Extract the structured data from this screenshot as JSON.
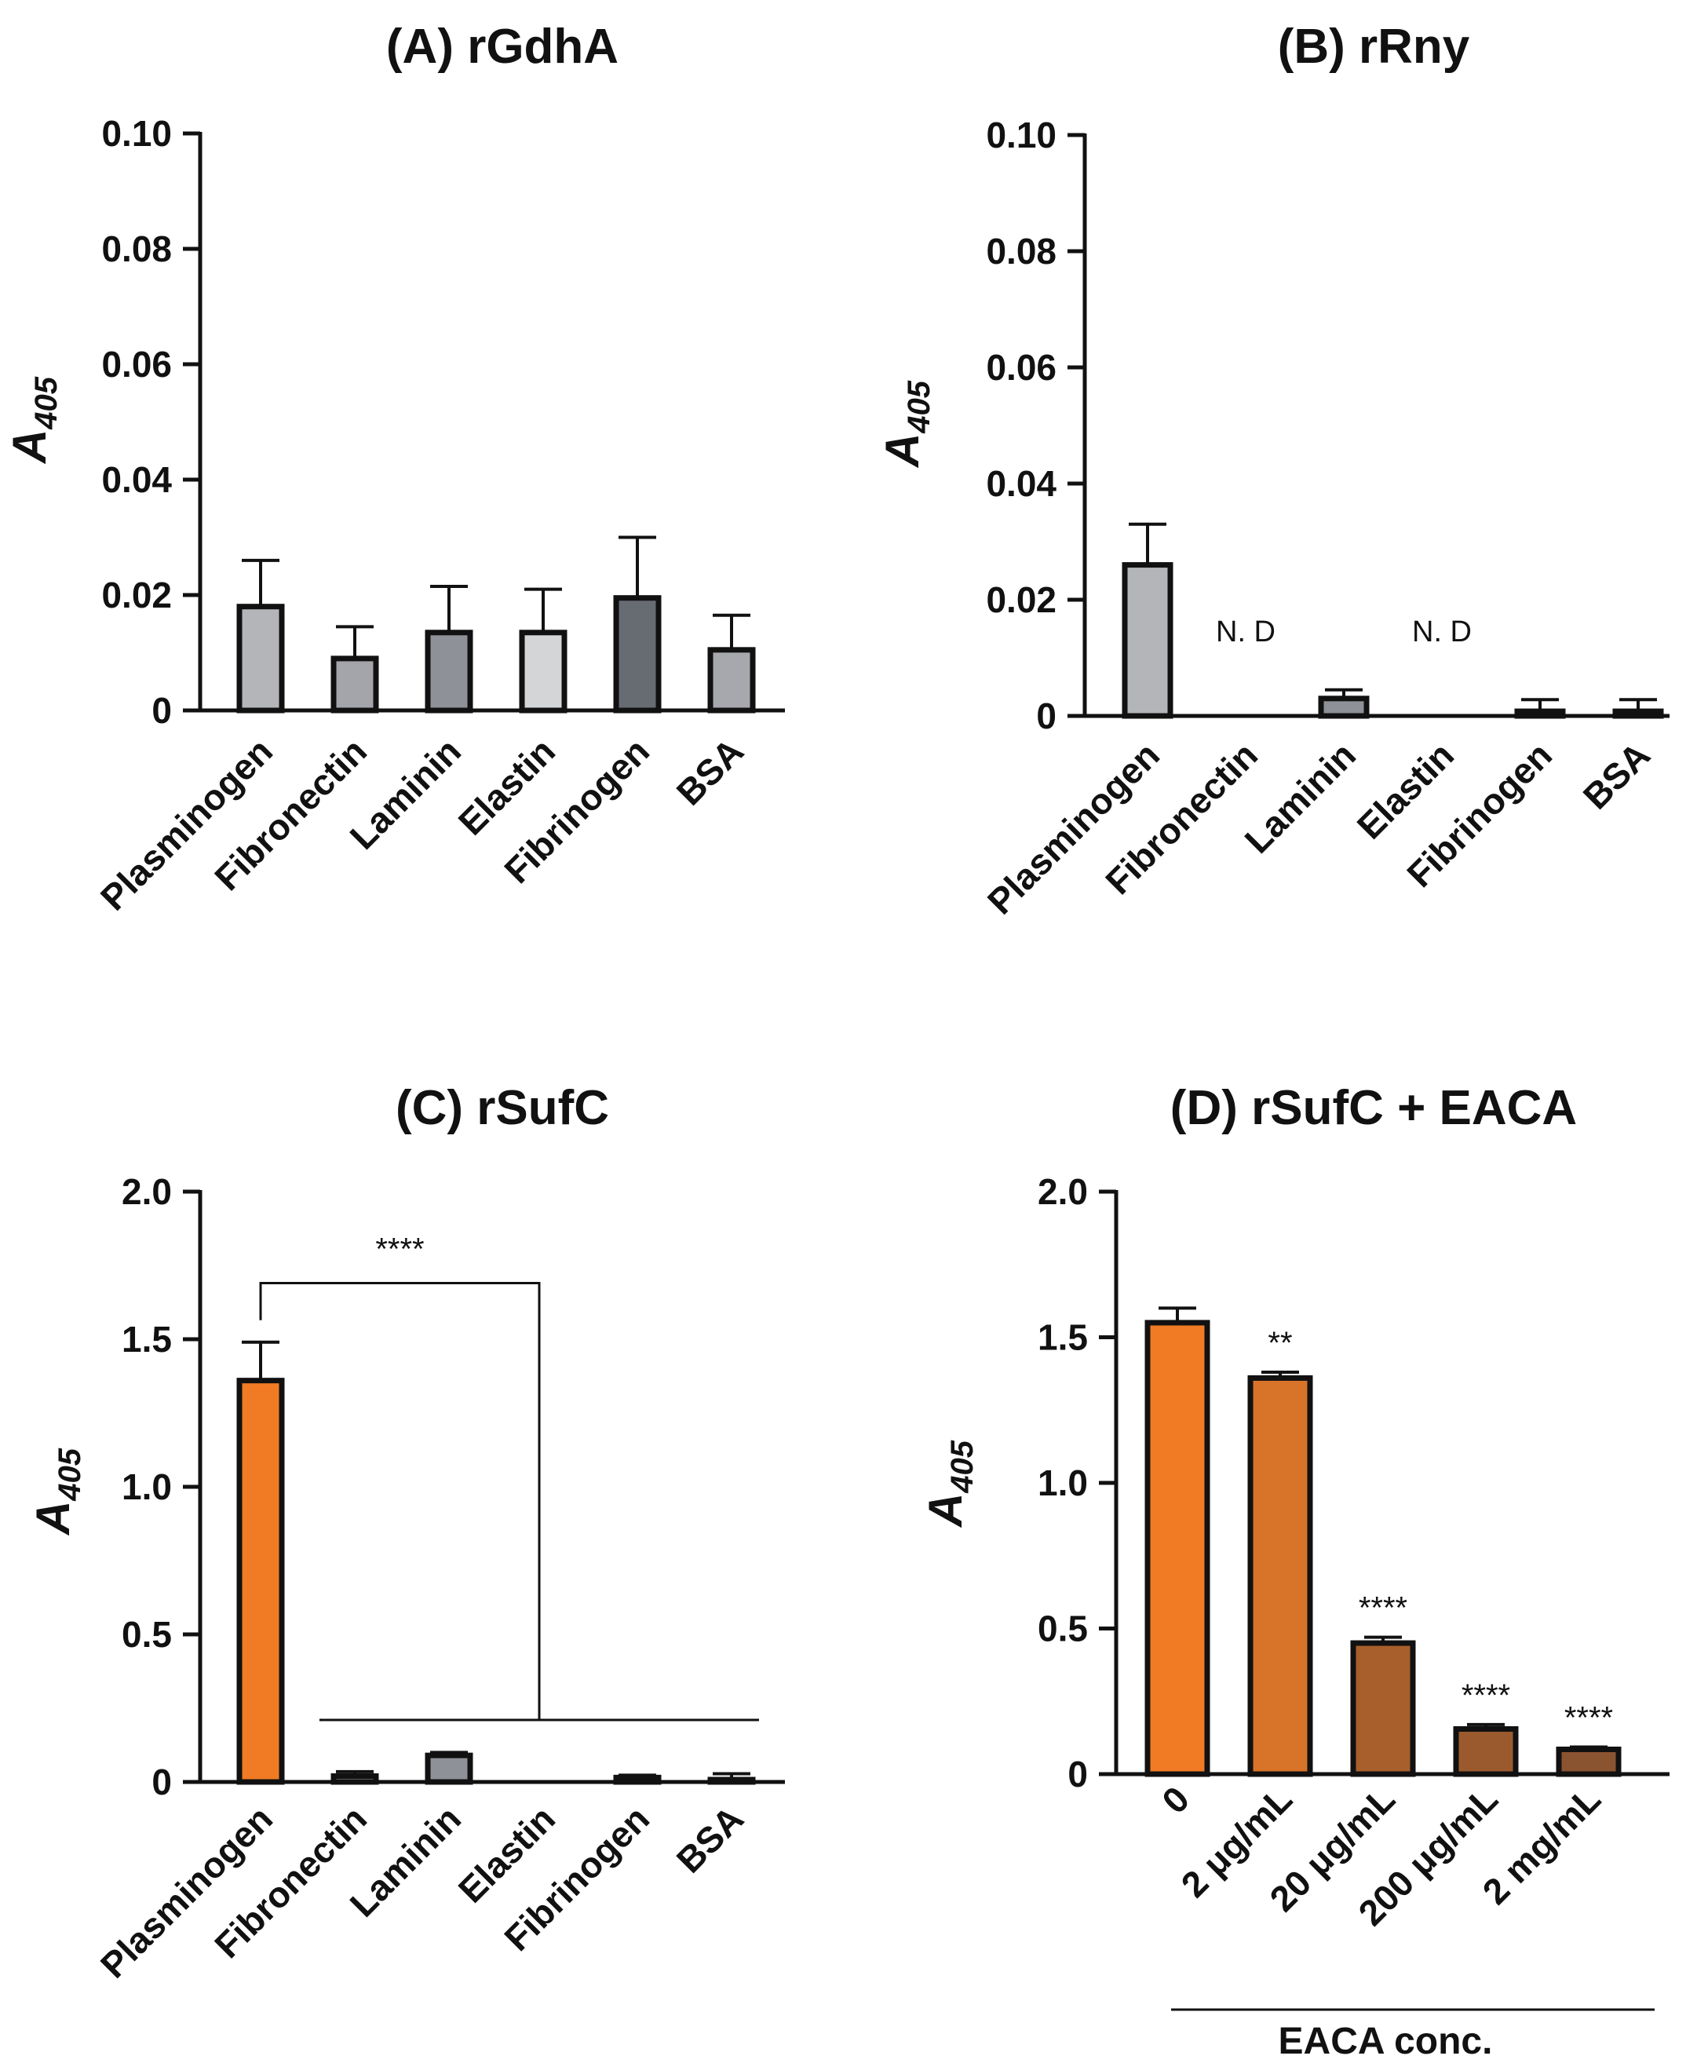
{
  "chart_data": [
    {
      "id": "A",
      "type": "bar",
      "title": "(A) rGdhA",
      "ylabel": "A",
      "ylabel_sub": "405",
      "xlabel": "",
      "ylim": [
        0,
        0.1
      ],
      "yticks": [
        0,
        0.02,
        0.04,
        0.06,
        0.08,
        0.1
      ],
      "ytick_labels": [
        "0",
        "0.02",
        "0.04",
        "0.06",
        "0.08",
        "0.10"
      ],
      "categories": [
        "Plasminogen",
        "Fibronectin",
        "Laminin",
        "Elastin",
        "Fibrinogen",
        "BSA"
      ],
      "values": [
        0.018,
        0.009,
        0.0135,
        0.0135,
        0.0195,
        0.0105
      ],
      "errors": [
        0.008,
        0.0055,
        0.008,
        0.0075,
        0.0105,
        0.006
      ],
      "colors": [
        "#b3b5b9",
        "#a3a5ab",
        "#8e9197",
        "#d4d5d7",
        "#676b72",
        "#a6a8ad"
      ],
      "annotations": [],
      "significance": []
    },
    {
      "id": "B",
      "type": "bar",
      "title": "(B) rRny",
      "ylabel": "A",
      "ylabel_sub": "405",
      "xlabel": "",
      "ylim": [
        0,
        0.1
      ],
      "yticks": [
        0,
        0.02,
        0.04,
        0.06,
        0.08,
        0.1
      ],
      "ytick_labels": [
        "0",
        "0.02",
        "0.04",
        "0.06",
        "0.08",
        "0.10"
      ],
      "categories": [
        "Plasminogen",
        "Fibronectin",
        "Laminin",
        "Elastin",
        "Fibrinogen",
        "BSA"
      ],
      "values": [
        0.026,
        0,
        0.003,
        0,
        0.0008,
        0.0008
      ],
      "errors": [
        0.007,
        0,
        0.0015,
        0,
        0.002,
        0.002
      ],
      "colors": [
        "#b3b5b9",
        "#a3a5ab",
        "#8e9197",
        "#d4d5d7",
        "#676b72",
        "#a6a8ad"
      ],
      "annotations": [
        {
          "category_index": 1,
          "text": "N. D"
        },
        {
          "category_index": 3,
          "text": "N. D"
        }
      ],
      "significance": []
    },
    {
      "id": "C",
      "type": "bar",
      "title": "(C) rSufC",
      "ylabel": "A",
      "ylabel_sub": "405",
      "xlabel": "",
      "ylim": [
        0,
        2.0
      ],
      "yticks": [
        0,
        0.5,
        1.0,
        1.5,
        2.0
      ],
      "ytick_labels": [
        "0",
        "0.5",
        "1.0",
        "1.5",
        "2.0"
      ],
      "categories": [
        "Plasminogen",
        "Fibronectin",
        "Laminin",
        "Elastin",
        "Fibrinogen",
        "BSA"
      ],
      "values": [
        1.36,
        0.02,
        0.09,
        0,
        0.015,
        0.008
      ],
      "errors": [
        0.13,
        0.015,
        0.01,
        0,
        0.008,
        0.02
      ],
      "colors": [
        "#f07b24",
        "#a3a5ab",
        "#8e9197",
        "#d4d5d7",
        "#676b72",
        "#a6a8ad"
      ],
      "annotations": [],
      "significance": [
        {
          "text": "****",
          "from_index": 0,
          "to_range": [
            1,
            5
          ],
          "bracket_y": 1.69,
          "group_line_y": 0.21
        }
      ]
    },
    {
      "id": "D",
      "type": "bar",
      "title": "(D) rSufC + EACA",
      "ylabel": "A",
      "ylabel_sub": "405",
      "xlabel": "EACA conc.",
      "ylim": [
        0,
        2.0
      ],
      "yticks": [
        0,
        0.5,
        1.0,
        1.5,
        2.0
      ],
      "ytick_labels": [
        "0",
        "0.5",
        "1.0",
        "1.5",
        "2.0"
      ],
      "categories": [
        "0",
        "2 μg/mL",
        "20 μg/mL",
        "200 μg/mL",
        "2 mg/mL"
      ],
      "values": [
        1.55,
        1.36,
        0.45,
        0.155,
        0.085
      ],
      "errors": [
        0.05,
        0.02,
        0.02,
        0.015,
        0.008
      ],
      "colors": [
        "#f07b24",
        "#d8732a",
        "#a95f2c",
        "#9b5a2e",
        "#8b5430"
      ],
      "annotations": [
        {
          "category_index": 1,
          "text": "**"
        },
        {
          "category_index": 2,
          "text": "****"
        },
        {
          "category_index": 3,
          "text": "****"
        },
        {
          "category_index": 4,
          "text": "****"
        }
      ],
      "significance": []
    }
  ]
}
